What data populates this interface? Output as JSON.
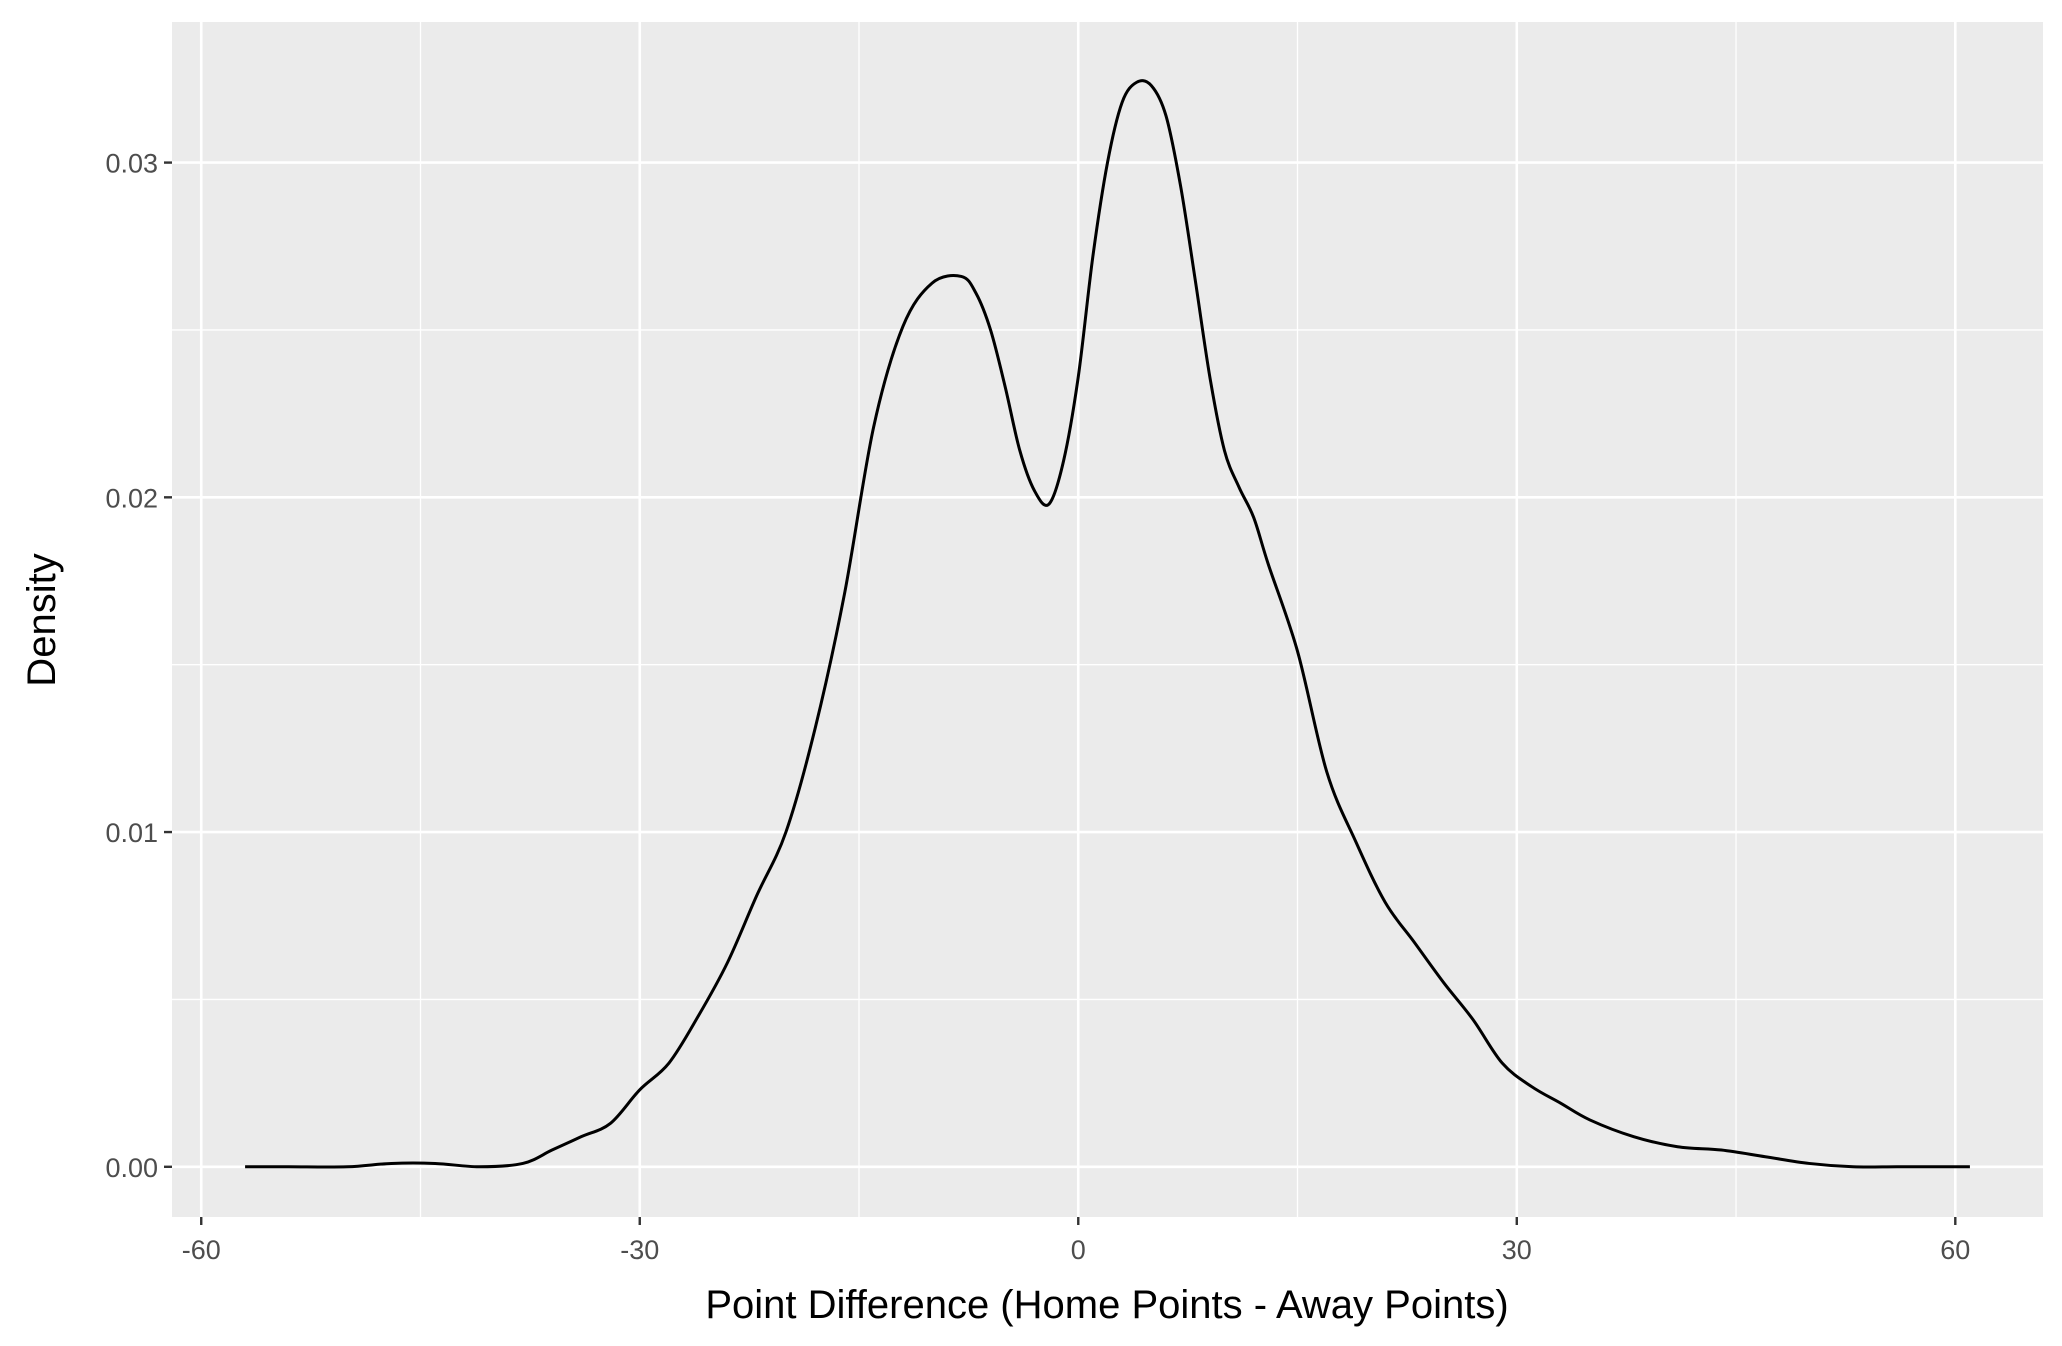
{
  "chart_data": {
    "type": "line",
    "title": "",
    "xlabel": "Point Difference (Home Points - Away Points)",
    "ylabel": "Density",
    "xlim": [
      -62,
      66
    ],
    "ylim": [
      -0.0015,
      0.0342
    ],
    "grid": true,
    "x_ticks": [
      -60,
      -30,
      0,
      30,
      60
    ],
    "x_tick_labels": [
      "-60",
      "-30",
      "0",
      "30",
      "60"
    ],
    "y_ticks": [
      0,
      0.01,
      0.02,
      0.03
    ],
    "y_tick_labels": [
      "0.00",
      "0.01",
      "0.02",
      "0.03"
    ],
    "series": [
      {
        "color": "#000000",
        "x": [
          -57,
          -54,
          -50,
          -47,
          -44,
          -41,
          -38,
          -36,
          -34,
          -32,
          -30,
          -28,
          -26,
          -24,
          -22,
          -20,
          -18,
          -16,
          -14,
          -12,
          -10,
          -8,
          -7,
          -6,
          -5,
          -4,
          -3,
          -2,
          -1,
          0,
          1,
          2,
          3,
          4,
          5,
          6,
          7,
          8,
          9,
          10,
          11,
          12,
          13,
          15,
          17,
          19,
          21,
          23,
          25,
          27,
          29,
          31,
          33,
          35,
          38,
          41,
          44,
          47,
          50,
          53,
          56,
          59,
          61
        ],
        "y": [
          0.0,
          0.0,
          0.0,
          0.0001,
          0.0001,
          0.0,
          0.0001,
          0.0005,
          0.0009,
          0.0013,
          0.0023,
          0.0031,
          0.0045,
          0.0061,
          0.0081,
          0.01,
          0.0131,
          0.0171,
          0.0221,
          0.0251,
          0.0264,
          0.0266,
          0.0261,
          0.025,
          0.0233,
          0.0214,
          0.0202,
          0.0198,
          0.0211,
          0.0236,
          0.0272,
          0.03,
          0.0318,
          0.0324,
          0.0323,
          0.0314,
          0.0293,
          0.0265,
          0.0236,
          0.0214,
          0.0203,
          0.0194,
          0.018,
          0.0154,
          0.0118,
          0.0097,
          0.0079,
          0.0067,
          0.0055,
          0.0044,
          0.0031,
          0.0024,
          0.0019,
          0.0014,
          0.0009,
          0.0006,
          0.0005,
          0.0003,
          0.0001,
          0.0,
          0.0,
          0.0,
          0.0
        ]
      }
    ]
  }
}
